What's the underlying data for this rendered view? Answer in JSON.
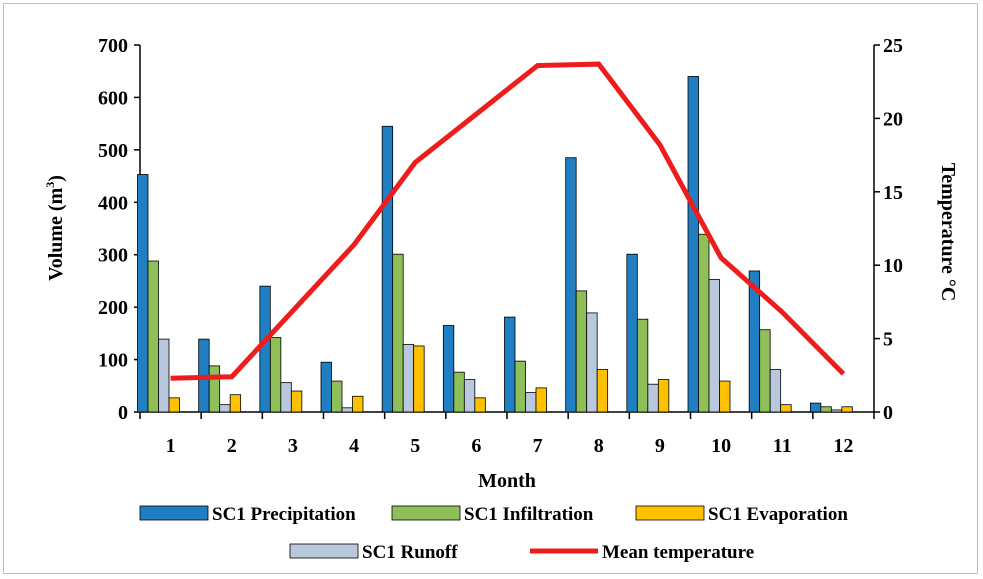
{
  "chart_data": {
    "type": "bar",
    "categories": [
      "1",
      "2",
      "3",
      "4",
      "5",
      "6",
      "7",
      "8",
      "9",
      "10",
      "11",
      "12"
    ],
    "xlabel": "Month",
    "ylabel_parts": [
      "Volume (m",
      "3",
      ")"
    ],
    "ylabel_right": "Temperature °C",
    "ylim": [
      0,
      700
    ],
    "yticks": [
      0,
      100,
      200,
      300,
      400,
      500,
      600,
      700
    ],
    "ylim_right": [
      0,
      25
    ],
    "yticks_right": [
      0,
      5,
      10,
      15,
      20,
      25
    ],
    "series": [
      {
        "name": "SC1 Precipitation",
        "color": "#1f7fc2",
        "values": [
          453,
          139,
          240,
          95,
          545,
          165,
          181,
          485,
          301,
          640,
          269,
          17
        ]
      },
      {
        "name": "SC1 Infiltration",
        "color": "#8fbf58",
        "values": [
          288,
          88,
          142,
          59,
          301,
          76,
          97,
          231,
          177,
          339,
          157,
          10
        ]
      },
      {
        "name": "SC1 Runoff",
        "color": "#b9c8dd",
        "values": [
          139,
          14,
          56,
          8,
          129,
          62,
          37,
          189,
          53,
          253,
          81,
          4
        ]
      },
      {
        "name": "SC1 Evaporation",
        "color": "#ffc000",
        "values": [
          27,
          33,
          40,
          30,
          126,
          27,
          46,
          81,
          62,
          59,
          14,
          10
        ]
      }
    ],
    "line_series": {
      "name": "Mean temperature",
      "color": "#ee1c1c",
      "axis": "right",
      "values": [
        2.3,
        2.4,
        6.9,
        11.4,
        17.0,
        20.3,
        23.6,
        23.7,
        18.2,
        10.5,
        6.8,
        2.6
      ]
    },
    "legend": {
      "placement": "bottom",
      "rows": [
        [
          "SC1 Precipitation",
          "SC1 Infiltration",
          "SC1 Evaporation"
        ],
        [
          "SC1 Runoff",
          "Mean temperature"
        ]
      ]
    }
  }
}
